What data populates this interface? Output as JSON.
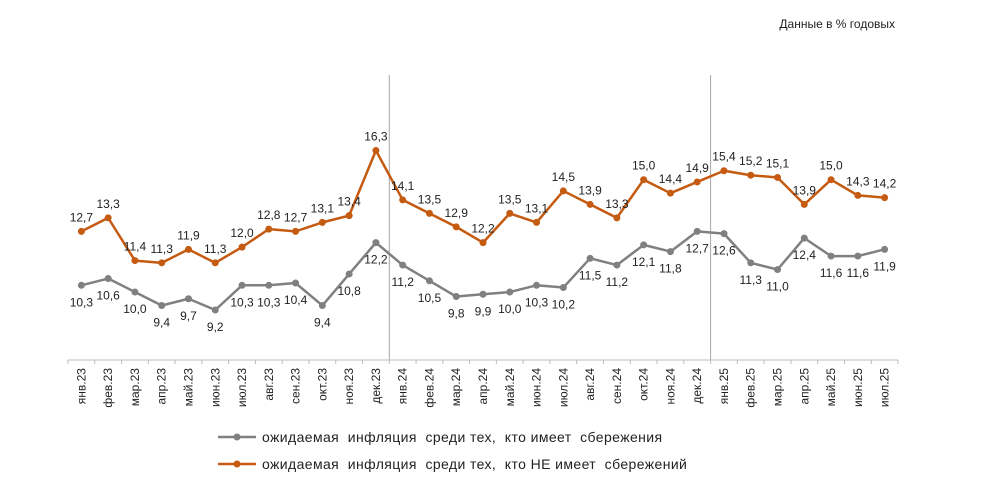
{
  "chart_data": {
    "type": "line",
    "unit_note": "Данные в % годовых",
    "categories": [
      "янв.23",
      "фев.23",
      "мар.23",
      "апр.23",
      "май.23",
      "июн.23",
      "июл.23",
      "авг.23",
      "сен.23",
      "окт.23",
      "ноя.23",
      "дек.23",
      "янв.24",
      "фев.24",
      "мар.24",
      "апр.24",
      "май.24",
      "июн.24",
      "июл.24",
      "авг.24",
      "сен.24",
      "окт.24",
      "ноя.24",
      "дек.24",
      "янв.25",
      "фев.25",
      "мар.25",
      "апр.25",
      "май.25",
      "июн.25",
      "июл.25"
    ],
    "series": [
      {
        "name": "ожидаемая  инфляция  среди тех,  кто имеет  сбережения",
        "color": "#808080",
        "values": [
          10.3,
          10.6,
          10.0,
          9.4,
          9.7,
          9.2,
          10.3,
          10.3,
          10.4,
          9.4,
          10.8,
          12.2,
          11.2,
          10.5,
          9.8,
          9.9,
          10.0,
          10.3,
          10.2,
          11.5,
          11.2,
          12.1,
          11.8,
          12.7,
          12.6,
          11.3,
          11.0,
          12.4,
          11.6,
          11.6,
          11.9
        ],
        "labels": [
          "10,3",
          "10,6",
          "10,0",
          "9,4",
          "9,7",
          "9,2",
          "10,3",
          "10,3",
          "10,4",
          "9,4",
          "10,8",
          "12,2",
          "11,2",
          "10,5",
          "9,8",
          "9,9",
          "10,0",
          "10,3",
          "10,2",
          "11,5",
          "11,2",
          "12,1",
          "11,8",
          "12,7",
          "12,6",
          "11,3",
          "11,0",
          "12,4",
          "11,6",
          "11,6",
          "11,9"
        ]
      },
      {
        "name": "ожидаемая  инфляция  среди тех,  кто НЕ имеет  сбережений",
        "color": "#C55A11",
        "values": [
          12.7,
          13.3,
          11.4,
          11.3,
          11.9,
          11.3,
          12.0,
          12.8,
          12.7,
          13.1,
          13.4,
          16.3,
          14.1,
          13.5,
          12.9,
          12.2,
          13.5,
          13.1,
          14.5,
          13.9,
          13.3,
          15.0,
          14.4,
          14.9,
          15.4,
          15.2,
          15.1,
          13.9,
          15.0,
          14.3,
          14.2
        ],
        "labels": [
          "12,7",
          "13,3",
          "11,4",
          "11,3",
          "11,9",
          "11,3",
          "12,0",
          "12,8",
          "12,7",
          "13,1",
          "13,4",
          "16,3",
          "14,1",
          "13,5",
          "12,9",
          "12,2",
          "13,5",
          "13,1",
          "14,5",
          "13,9",
          "13,3",
          "15,0",
          "14,4",
          "14,9",
          "15,4",
          "15,2",
          "15,1",
          "13,9",
          "15,0",
          "14,3",
          "14,2"
        ]
      }
    ],
    "year_dividers_after": [
      "дек.23",
      "дек.24"
    ],
    "ylim": [
      7,
      17
    ],
    "y_axis_visible": false,
    "grid": false,
    "legend_position": "bottom"
  }
}
